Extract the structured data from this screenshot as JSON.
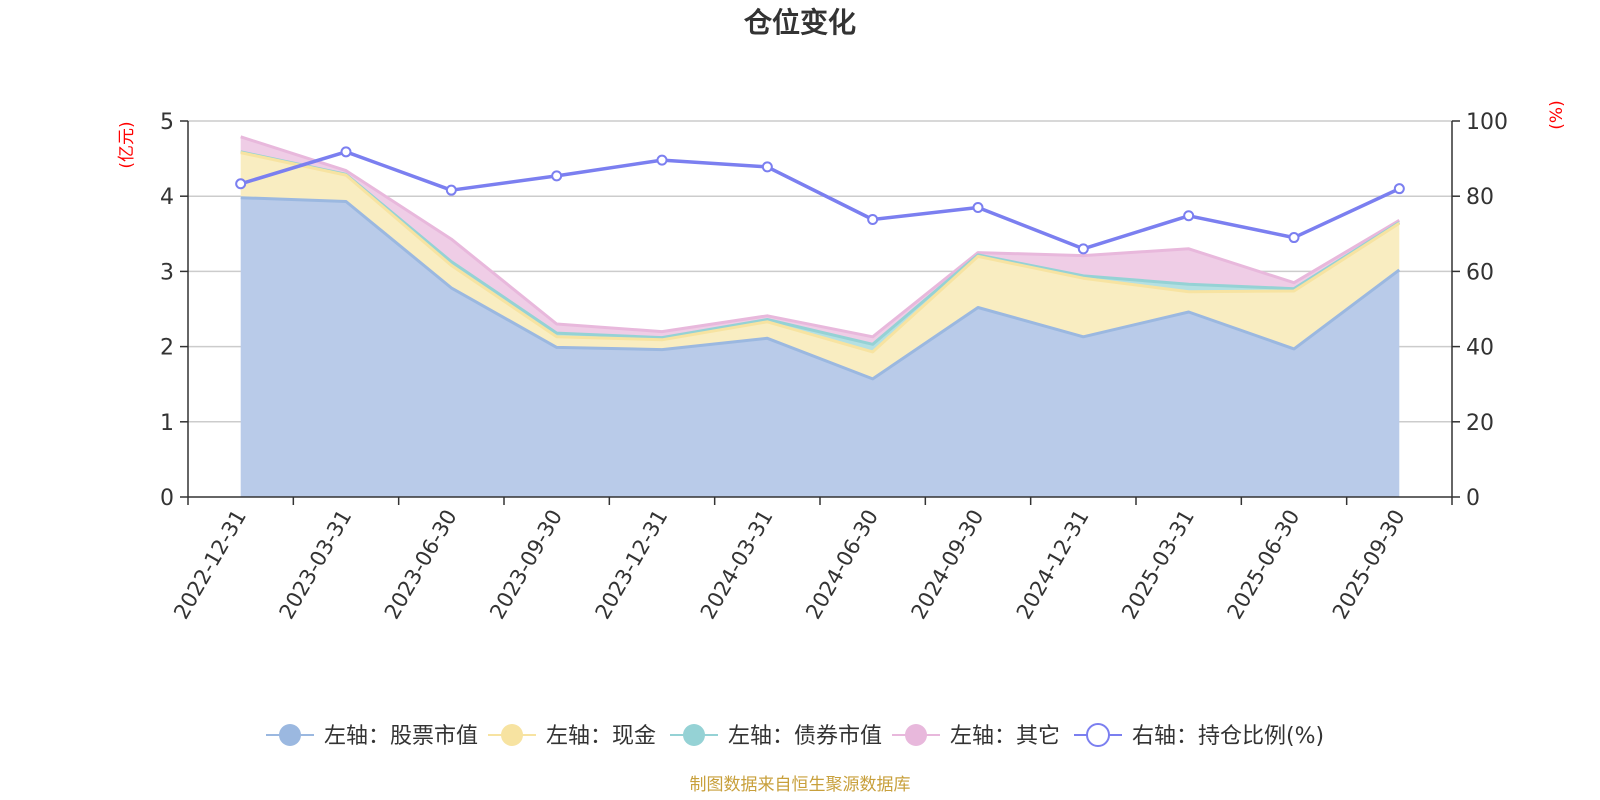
{
  "chart_data": {
    "type": "area",
    "title": "仓位变化",
    "left_unit": "(亿元)",
    "right_unit": "(%)",
    "categories": [
      "2022-12-31",
      "2023-03-31",
      "2023-06-30",
      "2023-09-30",
      "2023-12-31",
      "2024-03-31",
      "2024-06-30",
      "2024-09-30",
      "2024-12-31",
      "2025-03-31",
      "2025-06-30",
      "2025-09-30"
    ],
    "left_axis": {
      "min": 0,
      "max": 5,
      "ticks": [
        "0",
        "1",
        "2",
        "3",
        "4",
        "5"
      ]
    },
    "right_axis": {
      "min": 0,
      "max": 100,
      "ticks": [
        "0",
        "20",
        "40",
        "60",
        "80",
        "100"
      ]
    },
    "series": [
      {
        "name": "左轴：股票市值",
        "type": "stacked-area",
        "axis": "left",
        "color": "#9bb8e0",
        "fill": "#b9cbe9",
        "values": [
          3.98,
          3.93,
          2.78,
          1.99,
          1.96,
          2.11,
          1.57,
          2.52,
          2.13,
          2.46,
          1.97,
          3.02
        ]
      },
      {
        "name": "左轴：现金",
        "type": "stacked-area",
        "axis": "left",
        "color": "#f7e3a1",
        "fill": "#f9edc1",
        "values": [
          0.6,
          0.35,
          0.3,
          0.14,
          0.13,
          0.22,
          0.36,
          0.68,
          0.78,
          0.27,
          0.77,
          0.62
        ]
      },
      {
        "name": "左轴：债券市值",
        "type": "stacked-area",
        "axis": "left",
        "color": "#95d2d5",
        "fill": "#b4e0e2",
        "values": [
          0.01,
          0.01,
          0.05,
          0.05,
          0.03,
          0.03,
          0.1,
          0.02,
          0.03,
          0.1,
          0.03,
          0.01
        ]
      },
      {
        "name": "左轴：其它",
        "type": "stacked-area",
        "axis": "left",
        "color": "#e8b8dc",
        "fill": "#efcde6",
        "values": [
          0.2,
          0.05,
          0.3,
          0.12,
          0.08,
          0.05,
          0.1,
          0.03,
          0.27,
          0.47,
          0.08,
          0.03
        ]
      },
      {
        "name": "右轴：持仓比例(%)",
        "type": "line",
        "axis": "right",
        "color": "#7b7ff0",
        "values": [
          83.3,
          91.8,
          81.6,
          85.4,
          89.6,
          87.8,
          73.8,
          77.0,
          66.0,
          74.8,
          69.0,
          82.0
        ]
      }
    ],
    "legend_position": "bottom-center",
    "grid": true,
    "source": "制图数据来自恒生聚源数据库"
  }
}
